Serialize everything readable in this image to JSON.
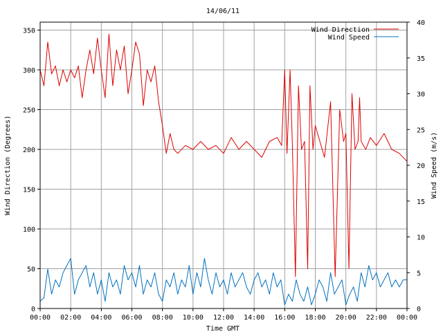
{
  "chart_data": {
    "type": "line",
    "title": "14/06/11",
    "xlabel": "Time GMT",
    "ylabel_left": "Wind Direction (Degrees)",
    "ylabel_right": "Wind Speed (m/s)",
    "x_ticks": [
      "00:00",
      "02:00",
      "04:00",
      "06:00",
      "08:00",
      "10:00",
      "12:00",
      "14:00",
      "16:00",
      "18:00",
      "20:00",
      "22:00",
      "00:00"
    ],
    "x_range_hours": [
      0,
      24
    ],
    "y_left": {
      "range": [
        0,
        360
      ],
      "ticks": [
        0,
        50,
        100,
        150,
        200,
        250,
        300,
        350
      ]
    },
    "y_right": {
      "range": [
        0,
        40
      ],
      "ticks": [
        0,
        5,
        10,
        15,
        20,
        25,
        30,
        35,
        40
      ]
    },
    "grid": true,
    "legend_position": "top-right",
    "series": [
      {
        "name": "Wind Direction",
        "axis": "left",
        "color": "#dd0000",
        "x_hours": [
          0,
          0.25,
          0.5,
          0.75,
          1,
          1.25,
          1.5,
          1.75,
          2,
          2.25,
          2.5,
          2.75,
          3,
          3.25,
          3.5,
          3.75,
          4,
          4.25,
          4.5,
          4.75,
          5,
          5.25,
          5.5,
          5.75,
          6,
          6.25,
          6.5,
          6.75,
          7,
          7.25,
          7.5,
          7.75,
          8,
          8.25,
          8.5,
          8.75,
          9,
          9.5,
          10,
          10.5,
          11,
          11.5,
          12,
          12.5,
          13,
          13.5,
          14,
          14.5,
          15,
          15.5,
          15.8,
          16,
          16.15,
          16.35,
          16.5,
          16.7,
          16.9,
          17.1,
          17.3,
          17.5,
          17.65,
          17.85,
          18,
          18.3,
          18.6,
          19,
          19.3,
          19.6,
          19.85,
          20,
          20.2,
          20.4,
          20.6,
          20.8,
          20.9,
          21,
          21.3,
          21.6,
          22,
          22.5,
          23,
          23.5,
          24
        ],
        "y_degrees": [
          300,
          280,
          335,
          295,
          305,
          280,
          300,
          285,
          300,
          290,
          305,
          265,
          300,
          325,
          295,
          340,
          300,
          265,
          345,
          280,
          325,
          300,
          330,
          270,
          300,
          335,
          320,
          255,
          300,
          285,
          305,
          260,
          230,
          195,
          220,
          200,
          195,
          205,
          200,
          210,
          200,
          205,
          195,
          215,
          200,
          210,
          200,
          190,
          210,
          215,
          205,
          300,
          195,
          300,
          205,
          40,
          280,
          200,
          210,
          50,
          280,
          200,
          230,
          210,
          190,
          260,
          40,
          250,
          210,
          220,
          50,
          270,
          200,
          210,
          265,
          210,
          200,
          215,
          205,
          220,
          200,
          195,
          185
        ]
      },
      {
        "name": "Wind Speed",
        "axis": "right",
        "color": "#0070c0",
        "x_hours": [
          0,
          0.25,
          0.5,
          0.75,
          1,
          1.25,
          1.5,
          1.75,
          2,
          2.25,
          2.5,
          2.75,
          3,
          3.25,
          3.5,
          3.75,
          4,
          4.25,
          4.5,
          4.75,
          5,
          5.25,
          5.5,
          5.75,
          6,
          6.25,
          6.5,
          6.75,
          7,
          7.25,
          7.5,
          7.75,
          8,
          8.25,
          8.5,
          8.75,
          9,
          9.25,
          9.5,
          9.75,
          10,
          10.25,
          10.5,
          10.75,
          11,
          11.25,
          11.5,
          11.75,
          12,
          12.25,
          12.5,
          12.75,
          13,
          13.25,
          13.5,
          13.75,
          14,
          14.25,
          14.5,
          14.75,
          15,
          15.25,
          15.5,
          15.75,
          16,
          16.25,
          16.5,
          16.75,
          17,
          17.25,
          17.5,
          17.75,
          18,
          18.25,
          18.5,
          18.75,
          19,
          19.25,
          19.5,
          19.75,
          20,
          20.25,
          20.5,
          20.75,
          21,
          21.25,
          21.5,
          21.75,
          22,
          22.25,
          22.5,
          22.75,
          23,
          23.25,
          23.5,
          23.75,
          24
        ],
        "y_ms": [
          1,
          1.5,
          5.5,
          2,
          4,
          3,
          5,
          6,
          7,
          2,
          4,
          5,
          6,
          3,
          5,
          2,
          4,
          1,
          5,
          3,
          4,
          2,
          6,
          4,
          5,
          3,
          6,
          2,
          4,
          3,
          5,
          2,
          1,
          4,
          3,
          5,
          2,
          4,
          3,
          6,
          2,
          5,
          3,
          7,
          4,
          2,
          5,
          3,
          4,
          2,
          5,
          3,
          4,
          5,
          3,
          2,
          4,
          5,
          3,
          4,
          2,
          5,
          3,
          4,
          0.5,
          2,
          1,
          4,
          2,
          1,
          3,
          0.5,
          2,
          4,
          3,
          1,
          5,
          2,
          3,
          4,
          0.5,
          2,
          3,
          1,
          5,
          3,
          6,
          4,
          5,
          3,
          4,
          5,
          3,
          4,
          3,
          4,
          4
        ]
      }
    ]
  }
}
